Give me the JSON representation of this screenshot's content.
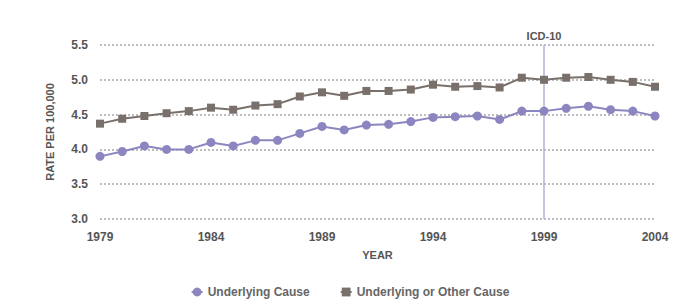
{
  "chart_data": {
    "type": "line",
    "x_label": "YEAR",
    "y_label": "RATE PER 100,000",
    "x": [
      1979,
      1980,
      1981,
      1982,
      1983,
      1984,
      1985,
      1986,
      1987,
      1988,
      1989,
      1990,
      1991,
      1992,
      1993,
      1994,
      1995,
      1996,
      1997,
      1998,
      1999,
      2000,
      2001,
      2002,
      2003,
      2004
    ],
    "series": [
      {
        "name": "Underlying Cause",
        "color": "#8c86c0",
        "marker": "circle",
        "values": [
          3.9,
          3.97,
          4.05,
          4.0,
          4.0,
          4.1,
          4.05,
          4.13,
          4.13,
          4.23,
          4.33,
          4.28,
          4.35,
          4.36,
          4.4,
          4.46,
          4.47,
          4.48,
          4.43,
          4.55,
          4.55,
          4.59,
          4.62,
          4.57,
          4.55,
          4.48
        ]
      },
      {
        "name": "Underlying or Other Cause",
        "color": "#7a706b",
        "marker": "square",
        "values": [
          4.37,
          4.44,
          4.48,
          4.52,
          4.55,
          4.6,
          4.57,
          4.63,
          4.65,
          4.76,
          4.82,
          4.77,
          4.84,
          4.84,
          4.86,
          4.93,
          4.9,
          4.91,
          4.89,
          5.03,
          5.0,
          5.03,
          5.04,
          5.0,
          4.97,
          4.9
        ]
      }
    ],
    "xlim": [
      1979,
      2004
    ],
    "xticks": [
      1979,
      1984,
      1989,
      1994,
      1999,
      2004
    ],
    "ylim": [
      3,
      5.5
    ],
    "yticks": [
      {
        "value": 3,
        "label": "3.0"
      },
      {
        "value": 3.5,
        "label": "3.5"
      },
      {
        "value": 4,
        "label": "4.0"
      },
      {
        "value": 4.5,
        "label": "4.5"
      },
      {
        "value": 5,
        "label": "5.0"
      },
      {
        "value": 5.5,
        "label": "5.5"
      }
    ],
    "annotations": [
      {
        "x": 1999,
        "text": "ICD-10"
      }
    ],
    "grid": true,
    "legend": "bottom"
  }
}
